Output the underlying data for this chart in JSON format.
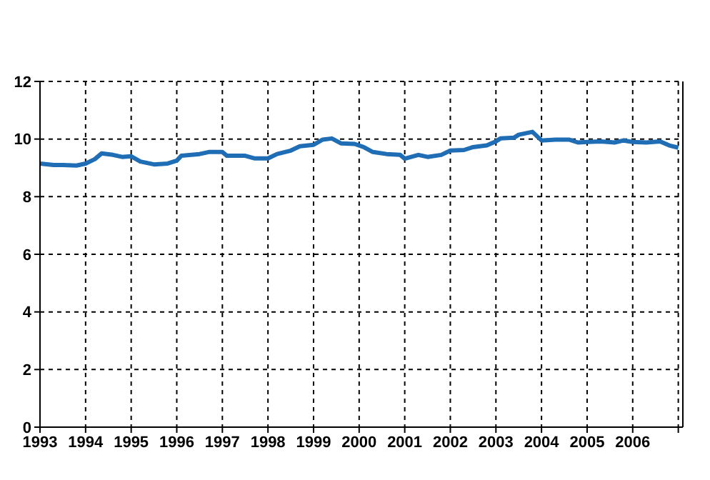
{
  "chart_data": {
    "type": "line",
    "x": [
      1993.0,
      1993.3,
      1993.5,
      1993.8,
      1994.0,
      1994.2,
      1994.35,
      1994.6,
      1994.8,
      1995.0,
      1995.2,
      1995.5,
      1995.8,
      1996.0,
      1996.1,
      1996.5,
      1996.7,
      1997.0,
      1997.1,
      1997.5,
      1997.7,
      1998.0,
      1998.2,
      1998.5,
      1998.7,
      1999.0,
      1999.2,
      1999.4,
      1999.6,
      1999.9,
      2000.1,
      2000.3,
      2000.6,
      2000.9,
      2001.0,
      2001.3,
      2001.5,
      2001.8,
      2002.0,
      2002.3,
      2002.5,
      2002.8,
      2003.0,
      2003.1,
      2003.4,
      2003.5,
      2003.8,
      2003.9,
      2004.0,
      2004.3,
      2004.6,
      2004.8,
      2005.0,
      2005.3,
      2005.6,
      2005.8,
      2006.0,
      2006.3,
      2006.6,
      2006.8,
      2007.0
    ],
    "series": [
      {
        "color": "#1f6db5",
        "values": [
          9.15,
          9.1,
          9.1,
          9.08,
          9.15,
          9.3,
          9.5,
          9.45,
          9.38,
          9.4,
          9.22,
          9.12,
          9.15,
          9.25,
          9.42,
          9.48,
          9.55,
          9.55,
          9.42,
          9.42,
          9.33,
          9.33,
          9.48,
          9.6,
          9.75,
          9.8,
          9.98,
          10.02,
          9.85,
          9.83,
          9.72,
          9.55,
          9.48,
          9.45,
          9.32,
          9.45,
          9.38,
          9.45,
          9.6,
          9.62,
          9.72,
          9.78,
          9.92,
          10.02,
          10.05,
          10.15,
          10.25,
          10.1,
          9.95,
          9.98,
          9.98,
          9.88,
          9.9,
          9.92,
          9.88,
          9.95,
          9.9,
          9.88,
          9.92,
          9.78,
          9.7
        ]
      }
    ],
    "xlim": [
      1993,
      2007.1
    ],
    "xticks": [
      1993,
      1994,
      1995,
      1996,
      1997,
      1998,
      1999,
      2000,
      2001,
      2002,
      2003,
      2004,
      2005,
      2006,
      {
        "value": 2007,
        "label": null
      }
    ],
    "ylim": [
      0,
      12
    ],
    "yticks": [
      0,
      2,
      4,
      6,
      8,
      10,
      12
    ],
    "grid": true,
    "marker": "none",
    "line_style": "solid"
  }
}
